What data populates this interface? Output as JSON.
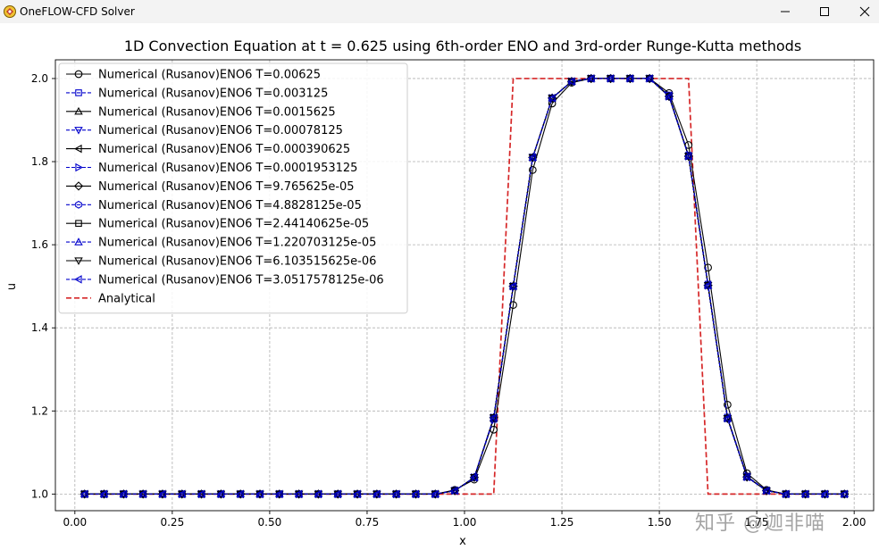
{
  "window": {
    "title": "OneFLOW-CFD Solver",
    "controls": [
      "minimize",
      "maximize",
      "close"
    ]
  },
  "watermark": "知乎 @迦非喵",
  "colors": {
    "numerical_black": "#000000",
    "numerical_blue": "#0000cc",
    "analytical": "#d62728",
    "grid": "#b0b0b0"
  },
  "chart_data": {
    "type": "line",
    "title": "1D Convection Equation at t = 0.625 using 6th-order ENO and 3rd-order Runge-Kutta methods",
    "xlabel": "x",
    "ylabel": "u",
    "xlim": [
      -0.05,
      2.05
    ],
    "ylim": [
      0.96,
      2.045
    ],
    "xticks": [
      0.0,
      0.25,
      0.5,
      0.75,
      1.0,
      1.25,
      1.5,
      1.75,
      2.0
    ],
    "xtick_labels": [
      "0.00",
      "0.25",
      "0.50",
      "0.75",
      "1.00",
      "1.25",
      "1.50",
      "1.75",
      "2.00"
    ],
    "yticks": [
      1.0,
      1.2,
      1.4,
      1.6,
      1.8,
      2.0
    ],
    "ytick_labels": [
      "1.0",
      "1.2",
      "1.4",
      "1.6",
      "1.8",
      "2.0"
    ],
    "grid": true,
    "legend_position": "upper-left",
    "x": [
      0.025,
      0.075,
      0.125,
      0.175,
      0.225,
      0.275,
      0.325,
      0.375,
      0.425,
      0.475,
      0.525,
      0.575,
      0.625,
      0.675,
      0.725,
      0.775,
      0.825,
      0.875,
      0.925,
      0.975,
      1.025,
      1.075,
      1.125,
      1.175,
      1.225,
      1.275,
      1.325,
      1.375,
      1.425,
      1.475,
      1.525,
      1.575,
      1.625,
      1.675,
      1.725,
      1.775,
      1.825,
      1.875,
      1.925,
      1.975
    ],
    "series": [
      {
        "name": "Numerical (Rusanov)ENO6 T=0.00625",
        "marker": "circle",
        "color": "#000000",
        "dash": "solid",
        "values": [
          1.0,
          1.0,
          1.0,
          1.0,
          1.0,
          1.0,
          1.0,
          1.0,
          1.0,
          1.0,
          1.0,
          1.0,
          1.0,
          1.0,
          1.0,
          1.0,
          1.0,
          1.0,
          1.0,
          1.01,
          1.035,
          1.155,
          1.455,
          1.78,
          1.94,
          1.99,
          2.0,
          2.0,
          2.0,
          2.0,
          1.965,
          1.84,
          1.545,
          1.215,
          1.05,
          1.01,
          1.0,
          1.0,
          1.0,
          1.0
        ]
      },
      {
        "name": "Numerical (Rusanov)ENO6 T=0.003125",
        "marker": "square",
        "color": "#0000cc",
        "dash": "dashed",
        "values": [
          1.0,
          1.0,
          1.0,
          1.0,
          1.0,
          1.0,
          1.0,
          1.0,
          1.0,
          1.0,
          1.0,
          1.0,
          1.0,
          1.0,
          1.0,
          1.0,
          1.0,
          1.0,
          1.0,
          1.008,
          1.04,
          1.18,
          1.5,
          1.81,
          1.953,
          1.993,
          2.0,
          2.0,
          2.0,
          2.0,
          1.96,
          1.815,
          1.505,
          1.185,
          1.043,
          1.008,
          1.0,
          1.0,
          1.0,
          1.0
        ]
      },
      {
        "name": "Numerical (Rusanov)ENO6 T=0.0015625",
        "marker": "triangle-up",
        "color": "#000000",
        "dash": "solid",
        "values": [
          1.0,
          1.0,
          1.0,
          1.0,
          1.0,
          1.0,
          1.0,
          1.0,
          1.0,
          1.0,
          1.0,
          1.0,
          1.0,
          1.0,
          1.0,
          1.0,
          1.0,
          1.0,
          1.0,
          1.008,
          1.04,
          1.182,
          1.5,
          1.81,
          1.953,
          1.993,
          2.0,
          2.0,
          2.0,
          2.0,
          1.958,
          1.814,
          1.503,
          1.183,
          1.042,
          1.008,
          1.0,
          1.0,
          1.0,
          1.0
        ]
      },
      {
        "name": "Numerical (Rusanov)ENO6 T=0.00078125",
        "marker": "triangle-down",
        "color": "#0000cc",
        "dash": "dashed",
        "values": [
          1.0,
          1.0,
          1.0,
          1.0,
          1.0,
          1.0,
          1.0,
          1.0,
          1.0,
          1.0,
          1.0,
          1.0,
          1.0,
          1.0,
          1.0,
          1.0,
          1.0,
          1.0,
          1.0,
          1.008,
          1.04,
          1.183,
          1.5,
          1.81,
          1.953,
          1.993,
          2.0,
          2.0,
          2.0,
          2.0,
          1.957,
          1.813,
          1.502,
          1.182,
          1.042,
          1.008,
          1.0,
          1.0,
          1.0,
          1.0
        ]
      },
      {
        "name": "Numerical (Rusanov)ENO6 T=0.000390625",
        "marker": "triangle-left",
        "color": "#000000",
        "dash": "solid",
        "values": [
          1.0,
          1.0,
          1.0,
          1.0,
          1.0,
          1.0,
          1.0,
          1.0,
          1.0,
          1.0,
          1.0,
          1.0,
          1.0,
          1.0,
          1.0,
          1.0,
          1.0,
          1.0,
          1.0,
          1.008,
          1.04,
          1.184,
          1.5,
          1.81,
          1.953,
          1.993,
          2.0,
          2.0,
          2.0,
          2.0,
          1.957,
          1.813,
          1.502,
          1.182,
          1.041,
          1.008,
          1.0,
          1.0,
          1.0,
          1.0
        ]
      },
      {
        "name": "Numerical (Rusanov)ENO6 T=0.0001953125",
        "marker": "triangle-right",
        "color": "#0000cc",
        "dash": "dashed",
        "values": [
          1.0,
          1.0,
          1.0,
          1.0,
          1.0,
          1.0,
          1.0,
          1.0,
          1.0,
          1.0,
          1.0,
          1.0,
          1.0,
          1.0,
          1.0,
          1.0,
          1.0,
          1.0,
          1.0,
          1.008,
          1.04,
          1.184,
          1.5,
          1.81,
          1.953,
          1.993,
          2.0,
          2.0,
          2.0,
          2.0,
          1.957,
          1.813,
          1.502,
          1.182,
          1.041,
          1.008,
          1.0,
          1.0,
          1.0,
          1.0
        ]
      },
      {
        "name": "Numerical (Rusanov)ENO6 T=9.765625e-05",
        "marker": "diamond",
        "color": "#000000",
        "dash": "solid",
        "values": [
          1.0,
          1.0,
          1.0,
          1.0,
          1.0,
          1.0,
          1.0,
          1.0,
          1.0,
          1.0,
          1.0,
          1.0,
          1.0,
          1.0,
          1.0,
          1.0,
          1.0,
          1.0,
          1.0,
          1.008,
          1.04,
          1.184,
          1.5,
          1.81,
          1.953,
          1.993,
          2.0,
          2.0,
          2.0,
          2.0,
          1.957,
          1.813,
          1.502,
          1.182,
          1.041,
          1.008,
          1.0,
          1.0,
          1.0,
          1.0
        ]
      },
      {
        "name": "Numerical (Rusanov)ENO6 T=4.8828125e-05",
        "marker": "hexagon",
        "color": "#0000cc",
        "dash": "dashed",
        "values": [
          1.0,
          1.0,
          1.0,
          1.0,
          1.0,
          1.0,
          1.0,
          1.0,
          1.0,
          1.0,
          1.0,
          1.0,
          1.0,
          1.0,
          1.0,
          1.0,
          1.0,
          1.0,
          1.0,
          1.008,
          1.04,
          1.184,
          1.5,
          1.81,
          1.953,
          1.993,
          2.0,
          2.0,
          2.0,
          2.0,
          1.957,
          1.813,
          1.502,
          1.182,
          1.041,
          1.008,
          1.0,
          1.0,
          1.0,
          1.0
        ]
      },
      {
        "name": "Numerical (Rusanov)ENO6 T=2.44140625e-05",
        "marker": "square",
        "color": "#000000",
        "dash": "solid",
        "values": [
          1.0,
          1.0,
          1.0,
          1.0,
          1.0,
          1.0,
          1.0,
          1.0,
          1.0,
          1.0,
          1.0,
          1.0,
          1.0,
          1.0,
          1.0,
          1.0,
          1.0,
          1.0,
          1.0,
          1.008,
          1.04,
          1.184,
          1.5,
          1.81,
          1.953,
          1.993,
          2.0,
          2.0,
          2.0,
          2.0,
          1.957,
          1.813,
          1.502,
          1.182,
          1.041,
          1.008,
          1.0,
          1.0,
          1.0,
          1.0
        ]
      },
      {
        "name": "Numerical (Rusanov)ENO6 T=1.220703125e-05",
        "marker": "triangle-up",
        "color": "#0000cc",
        "dash": "dashed",
        "values": [
          1.0,
          1.0,
          1.0,
          1.0,
          1.0,
          1.0,
          1.0,
          1.0,
          1.0,
          1.0,
          1.0,
          1.0,
          1.0,
          1.0,
          1.0,
          1.0,
          1.0,
          1.0,
          1.0,
          1.008,
          1.04,
          1.184,
          1.5,
          1.81,
          1.953,
          1.993,
          2.0,
          2.0,
          2.0,
          2.0,
          1.957,
          1.813,
          1.502,
          1.182,
          1.041,
          1.008,
          1.0,
          1.0,
          1.0,
          1.0
        ]
      },
      {
        "name": "Numerical (Rusanov)ENO6 T=6.103515625e-06",
        "marker": "triangle-down",
        "color": "#000000",
        "dash": "solid",
        "values": [
          1.0,
          1.0,
          1.0,
          1.0,
          1.0,
          1.0,
          1.0,
          1.0,
          1.0,
          1.0,
          1.0,
          1.0,
          1.0,
          1.0,
          1.0,
          1.0,
          1.0,
          1.0,
          1.0,
          1.008,
          1.04,
          1.184,
          1.5,
          1.81,
          1.953,
          1.993,
          2.0,
          2.0,
          2.0,
          2.0,
          1.957,
          1.813,
          1.502,
          1.182,
          1.041,
          1.008,
          1.0,
          1.0,
          1.0,
          1.0
        ]
      },
      {
        "name": "Numerical (Rusanov)ENO6 T=3.0517578125e-06",
        "marker": "triangle-left",
        "color": "#0000cc",
        "dash": "dashed",
        "values": [
          1.0,
          1.0,
          1.0,
          1.0,
          1.0,
          1.0,
          1.0,
          1.0,
          1.0,
          1.0,
          1.0,
          1.0,
          1.0,
          1.0,
          1.0,
          1.0,
          1.0,
          1.0,
          1.0,
          1.008,
          1.04,
          1.184,
          1.5,
          1.81,
          1.953,
          1.993,
          2.0,
          2.0,
          2.0,
          2.0,
          1.957,
          1.813,
          1.502,
          1.182,
          1.041,
          1.008,
          1.0,
          1.0,
          1.0,
          1.0
        ]
      }
    ],
    "analytical": {
      "name": "Analytical",
      "color": "#d62728",
      "dash": "dashed",
      "x": [
        0.025,
        1.075,
        1.125,
        1.575,
        1.625,
        1.975
      ],
      "values": [
        1.0,
        1.0,
        2.0,
        2.0,
        1.0,
        1.0
      ]
    }
  }
}
